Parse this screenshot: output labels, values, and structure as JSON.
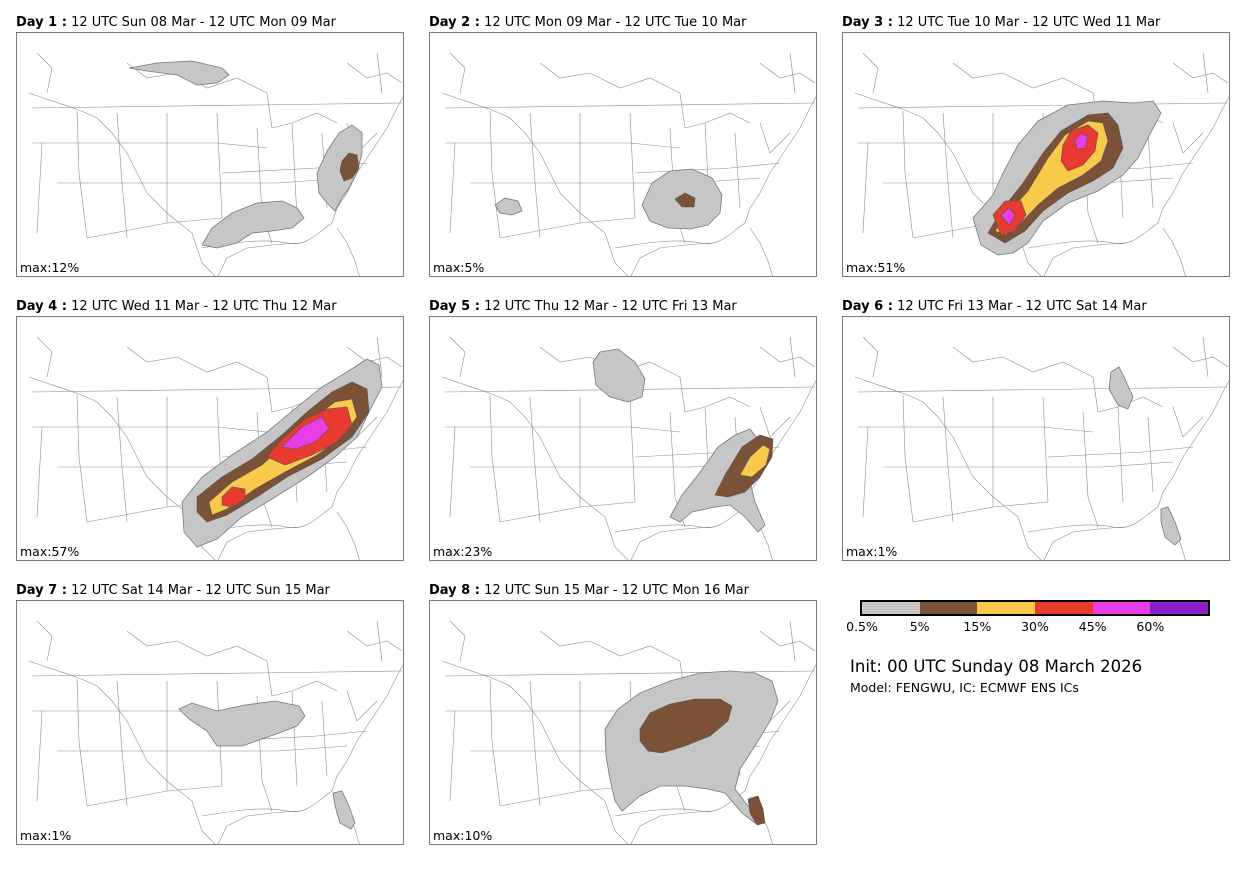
{
  "panels": [
    {
      "day": "Day 1 :",
      "period": "12 UTC Sun 08 Mar - 12 UTC Mon 09 Mar",
      "max": "max:12%"
    },
    {
      "day": "Day 2 :",
      "period": "12 UTC Mon 09 Mar - 12 UTC Tue 10 Mar",
      "max": "max:5%"
    },
    {
      "day": "Day 3 :",
      "period": "12 UTC Tue 10 Mar - 12 UTC Wed 11 Mar",
      "max": "max:51%"
    },
    {
      "day": "Day 4 :",
      "period": "12 UTC Wed 11 Mar - 12 UTC Thu 12 Mar",
      "max": "max:57%"
    },
    {
      "day": "Day 5 :",
      "period": "12 UTC Thu 12 Mar - 12 UTC Fri 13 Mar",
      "max": "max:23%"
    },
    {
      "day": "Day 6 :",
      "period": "12 UTC Fri 13 Mar - 12 UTC Sat 14 Mar",
      "max": "max:1%"
    },
    {
      "day": "Day 7 :",
      "period": "12 UTC Sat 14 Mar - 12 UTC Sun 15 Mar",
      "max": "max:1%"
    },
    {
      "day": "Day 8 :",
      "period": "12 UTC Sun 15 Mar - 12 UTC Mon 16 Mar",
      "max": "max:10%"
    }
  ],
  "legend": {
    "colors": [
      "#c6c6c6",
      "#7b5137",
      "#f8c94a",
      "#e83a2e",
      "#e93de8",
      "#8b1fc9"
    ],
    "ticks": [
      "0.5%",
      "5%",
      "15%",
      "30%",
      "45%",
      "60%"
    ]
  },
  "init": "Init: 00 UTC Sunday 08 March 2026",
  "model": "Model: FENGWU, IC: ECMWF ENS ICs"
}
